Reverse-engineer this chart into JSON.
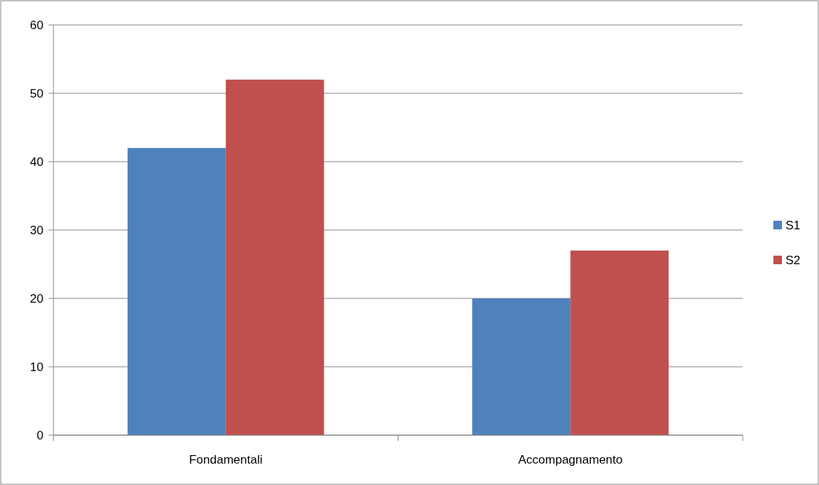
{
  "chart_data": {
    "type": "bar",
    "categories": [
      "Fondamentali",
      "Accompagnamento"
    ],
    "series": [
      {
        "name": "S1",
        "color": "#4f81bd",
        "values": [
          42,
          20
        ]
      },
      {
        "name": "S2",
        "color": "#c0504d",
        "values": [
          52,
          27
        ]
      }
    ],
    "ylim": [
      0,
      60
    ],
    "yticks": [
      0,
      10,
      20,
      30,
      40,
      50,
      60
    ],
    "grid": "y",
    "legend": "right"
  }
}
